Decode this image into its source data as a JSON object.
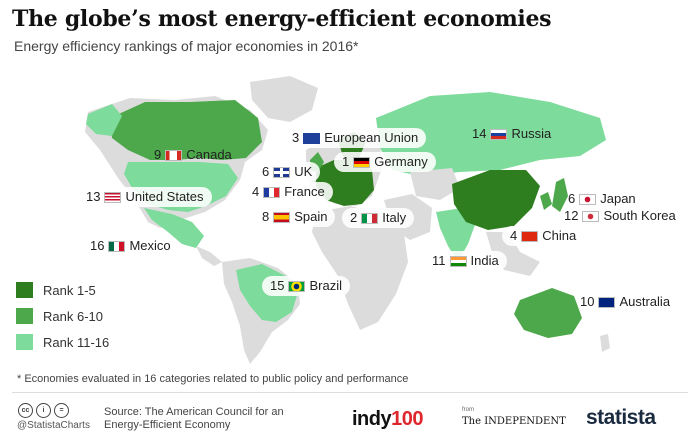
{
  "header": {
    "title": "The globe’s most energy-efficient economies",
    "subtitle": "Energy efficiency rankings of major economies in 2016*"
  },
  "colors": {
    "rank_1_5": "#2e7d1f",
    "rank_6_10": "#4ca84a",
    "rank_11_16": "#7ddb9b",
    "not_ranked": "#e1e1e1"
  },
  "chart_data": {
    "type": "table",
    "countries": [
      {
        "rank": "3",
        "name": "European Union",
        "flag": "flag-eu-icon"
      },
      {
        "rank": "14",
        "name": "Russia",
        "flag": "flag-russia-icon"
      },
      {
        "rank": "9",
        "name": "Canada",
        "flag": "flag-canada-icon"
      },
      {
        "rank": "1",
        "name": "Germany",
        "flag": "flag-germany-icon"
      },
      {
        "rank": "6",
        "name": "UK",
        "flag": "flag-uk-icon"
      },
      {
        "rank": "4",
        "name": "France",
        "flag": "flag-france-icon"
      },
      {
        "rank": "13",
        "name": "United States",
        "flag": "flag-usa-icon"
      },
      {
        "rank": "6",
        "name": "Japan",
        "flag": "flag-japan-icon"
      },
      {
        "rank": "8",
        "name": "Spain",
        "flag": "flag-spain-icon"
      },
      {
        "rank": "2",
        "name": "Italy",
        "flag": "flag-italy-icon"
      },
      {
        "rank": "12",
        "name": "South Korea",
        "flag": "flag-south-korea-icon"
      },
      {
        "rank": "4",
        "name": "China",
        "flag": "flag-china-icon"
      },
      {
        "rank": "16",
        "name": "Mexico",
        "flag": "flag-mexico-icon"
      },
      {
        "rank": "11",
        "name": "India",
        "flag": "flag-india-icon"
      },
      {
        "rank": "15",
        "name": "Brazil",
        "flag": "flag-brazil-icon"
      },
      {
        "rank": "10",
        "name": "Australia",
        "flag": "flag-australia-icon"
      }
    ],
    "legend": [
      "Rank 1-5",
      "Rank 6-10",
      "Rank 11-16"
    ]
  },
  "footer": {
    "footnote": "* Economies evaluated in 16 categories related to public policy and performance",
    "handle": "@StatistaCharts",
    "source": "Source: The American Council for an Energy-Efficient Economy",
    "logo_indy_a": "indy",
    "logo_indy_b": "100",
    "logo_from": "from",
    "logo_independent": "The INDEPENDENT",
    "logo_statista": "statista"
  }
}
